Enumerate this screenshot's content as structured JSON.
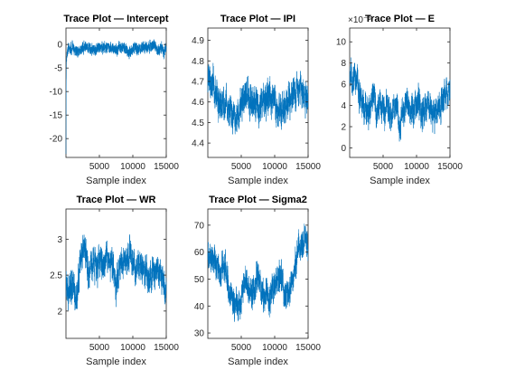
{
  "figure": {
    "background": "#ffffff",
    "line_color": "#0072BD"
  },
  "chart_data": [
    {
      "type": "line",
      "title": "Trace Plot — Intercept",
      "xlabel": "Sample index",
      "ylabel": "",
      "x_range": [
        1,
        15000
      ],
      "xlim": [
        1,
        15000
      ],
      "ylim": [
        -24,
        3.5
      ],
      "x_ticks": [
        5000,
        10000,
        15000
      ],
      "x_tick_labels": [
        "5000",
        "10000",
        "15000"
      ],
      "y_ticks": [
        -20,
        -15,
        -10,
        -5,
        0
      ],
      "y_tick_labels": [
        "-20",
        "-15",
        "-10",
        "-5",
        "0"
      ],
      "exponent_label": "",
      "grid": false,
      "series": [
        {
          "points": [
            [
              1,
              -23.5
            ],
            [
              20,
              -14
            ],
            [
              40,
              -8
            ],
            [
              60,
              -5
            ],
            [
              80,
              -3.2
            ],
            [
              120,
              -2.2
            ],
            [
              200,
              -1.6
            ],
            [
              400,
              -1.2
            ],
            [
              1000,
              -0.9
            ],
            [
              5000,
              -0.8
            ],
            [
              10000,
              -0.8
            ],
            [
              15000,
              -0.8
            ]
          ],
          "noise": [
            2.0,
            1.2,
            0.75
          ],
          "seed": 11
        }
      ]
    },
    {
      "type": "line",
      "title": "Trace Plot — IPI",
      "xlabel": "Sample index",
      "ylabel": "",
      "x_range": [
        1,
        15000
      ],
      "xlim": [
        1,
        15000
      ],
      "ylim": [
        4.33,
        4.96
      ],
      "x_ticks": [
        5000,
        10000,
        15000
      ],
      "x_tick_labels": [
        "5000",
        "10000",
        "15000"
      ],
      "y_ticks": [
        4.4,
        4.5,
        4.6,
        4.7,
        4.8,
        4.9
      ],
      "y_tick_labels": [
        "4.4",
        "4.5",
        "4.6",
        "4.7",
        "4.8",
        "4.9"
      ],
      "exponent_label": "",
      "grid": false,
      "series": [
        {
          "points": [
            [
              1,
              4.72
            ],
            [
              800,
              4.7
            ],
            [
              1500,
              4.62
            ],
            [
              2500,
              4.58
            ],
            [
              3500,
              4.52
            ],
            [
              4500,
              4.55
            ],
            [
              5500,
              4.68
            ],
            [
              6500,
              4.62
            ],
            [
              7500,
              4.56
            ],
            [
              8500,
              4.66
            ],
            [
              9500,
              4.62
            ],
            [
              10500,
              4.58
            ],
            [
              11500,
              4.55
            ],
            [
              12500,
              4.6
            ],
            [
              13500,
              4.64
            ],
            [
              14500,
              4.62
            ],
            [
              15000,
              4.6
            ]
          ],
          "noise": [
            0.11,
            0.07,
            0.08
          ],
          "seed": 23
        }
      ]
    },
    {
      "type": "line",
      "title": "Trace Plot — E",
      "xlabel": "Sample index",
      "ylabel": "",
      "x_range": [
        1,
        15000
      ],
      "xlim": [
        1,
        15000
      ],
      "ylim": [
        -0.9,
        11.3
      ],
      "x_ticks": [
        5000,
        10000,
        15000
      ],
      "x_tick_labels": [
        "5000",
        "10000",
        "15000"
      ],
      "y_ticks": [
        0,
        2,
        4,
        6,
        8,
        10
      ],
      "y_tick_labels": [
        "0",
        "2",
        "4",
        "6",
        "8",
        "10"
      ],
      "exponent_label": "×10⁻³",
      "grid": false,
      "series": [
        {
          "points": [
            [
              1,
              6.5
            ],
            [
              800,
              6.8
            ],
            [
              1500,
              4.5
            ],
            [
              2500,
              3.2
            ],
            [
              3500,
              4.6
            ],
            [
              4500,
              3.4
            ],
            [
              5500,
              4.0
            ],
            [
              6500,
              3.5
            ],
            [
              7500,
              2.8
            ],
            [
              8500,
              4.2
            ],
            [
              9500,
              3.5
            ],
            [
              10500,
              3.8
            ],
            [
              11500,
              3.0
            ],
            [
              12500,
              3.6
            ],
            [
              13500,
              3.9
            ],
            [
              14500,
              5.0
            ],
            [
              15000,
              5.5
            ]
          ],
          "noise": [
            2.0,
            1.5,
            1.3
          ],
          "seed": 37
        }
      ]
    },
    {
      "type": "line",
      "title": "Trace Plot — WR",
      "xlabel": "Sample index",
      "ylabel": "",
      "x_range": [
        1,
        15000
      ],
      "xlim": [
        1,
        15000
      ],
      "ylim": [
        1.62,
        3.42
      ],
      "x_ticks": [
        5000,
        10000,
        15000
      ],
      "x_tick_labels": [
        "5000",
        "10000",
        "15000"
      ],
      "y_ticks": [
        2,
        2.5,
        3
      ],
      "y_tick_labels": [
        "2",
        "2.5",
        "3"
      ],
      "exponent_label": "",
      "grid": false,
      "series": [
        {
          "points": [
            [
              1,
              2.3
            ],
            [
              800,
              2.45
            ],
            [
              1500,
              2.2
            ],
            [
              2500,
              2.9
            ],
            [
              3500,
              2.5
            ],
            [
              4500,
              2.75
            ],
            [
              5500,
              2.65
            ],
            [
              6500,
              2.8
            ],
            [
              7500,
              2.4
            ],
            [
              8500,
              2.65
            ],
            [
              9500,
              2.75
            ],
            [
              10500,
              2.5
            ],
            [
              11500,
              2.6
            ],
            [
              12500,
              2.4
            ],
            [
              13500,
              2.55
            ],
            [
              14500,
              2.35
            ],
            [
              15000,
              2.3
            ]
          ],
          "noise": [
            0.3,
            0.18,
            0.22
          ],
          "seed": 53
        }
      ]
    },
    {
      "type": "line",
      "title": "Trace Plot — Sigma2",
      "xlabel": "Sample index",
      "ylabel": "",
      "x_range": [
        1,
        15000
      ],
      "xlim": [
        1,
        15000
      ],
      "ylim": [
        28,
        76
      ],
      "x_ticks": [
        5000,
        10000,
        15000
      ],
      "x_tick_labels": [
        "5000",
        "10000",
        "15000"
      ],
      "y_ticks": [
        30,
        40,
        50,
        60,
        70
      ],
      "y_tick_labels": [
        "30",
        "40",
        "50",
        "60",
        "70"
      ],
      "exponent_label": "",
      "grid": false,
      "series": [
        {
          "points": [
            [
              1,
              60
            ],
            [
              800,
              57
            ],
            [
              1500,
              52
            ],
            [
              2500,
              57
            ],
            [
              3500,
              44
            ],
            [
              4500,
              40
            ],
            [
              5500,
              48
            ],
            [
              6500,
              45
            ],
            [
              7500,
              50
            ],
            [
              8500,
              45
            ],
            [
              9500,
              42
            ],
            [
              10500,
              50
            ],
            [
              11500,
              44
            ],
            [
              12500,
              48
            ],
            [
              13500,
              62
            ],
            [
              14500,
              65
            ],
            [
              15000,
              60
            ]
          ],
          "noise": [
            8.0,
            5.0,
            4.5
          ],
          "seed": 71
        }
      ]
    }
  ]
}
